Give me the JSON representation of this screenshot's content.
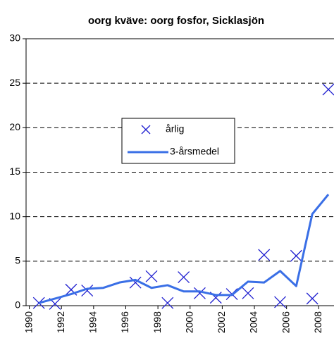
{
  "chart_data": {
    "type": "line",
    "title": "oorg kväve: oorg fosfor, Sicklasjön",
    "series": [
      {
        "name": "årlig",
        "color": "#1f1fd0",
        "marker": "x",
        "line": false,
        "x": [
          1990.6,
          1991.6,
          1992.6,
          1993.6,
          1996.6,
          1997.6,
          1998.6,
          1999.6,
          2000.6,
          2001.6,
          2002.6,
          2003.6,
          2004.6,
          2005.6,
          2006.6,
          2007.6,
          2008.6
        ],
        "values": [
          0.3,
          0.2,
          1.8,
          1.7,
          2.6,
          3.3,
          0.3,
          3.2,
          1.4,
          0.9,
          1.3,
          1.4,
          5.7,
          0.4,
          5.6,
          0.8,
          24.3
        ]
      },
      {
        "name": "3-årsmedel",
        "color": "#3a6fe6",
        "marker": null,
        "line": true,
        "x": [
          1990.6,
          1991.6,
          1992.6,
          1993.6,
          1994.6,
          1995.6,
          1996.6,
          1997.6,
          1998.6,
          1999.6,
          2000.6,
          2001.6,
          2002.6,
          2003.6,
          2004.6,
          2005.6,
          2006.6,
          2007.6,
          2008.6
        ],
        "values": [
          0.3,
          0.8,
          1.3,
          1.9,
          2.0,
          2.6,
          2.9,
          2.0,
          2.3,
          1.6,
          1.6,
          1.2,
          1.2,
          2.7,
          2.6,
          3.9,
          2.2,
          10.3,
          12.5
        ]
      }
    ],
    "xlim": [
      1989.8,
      2008.95
    ],
    "xticks": [
      1990,
      1992,
      1994,
      1996,
      1998,
      2000,
      2002,
      2004,
      2006,
      2008
    ],
    "ylim": [
      0,
      30
    ],
    "yticks": [
      0,
      5,
      10,
      15,
      20,
      25,
      30
    ],
    "grid": true,
    "legend": "center"
  }
}
